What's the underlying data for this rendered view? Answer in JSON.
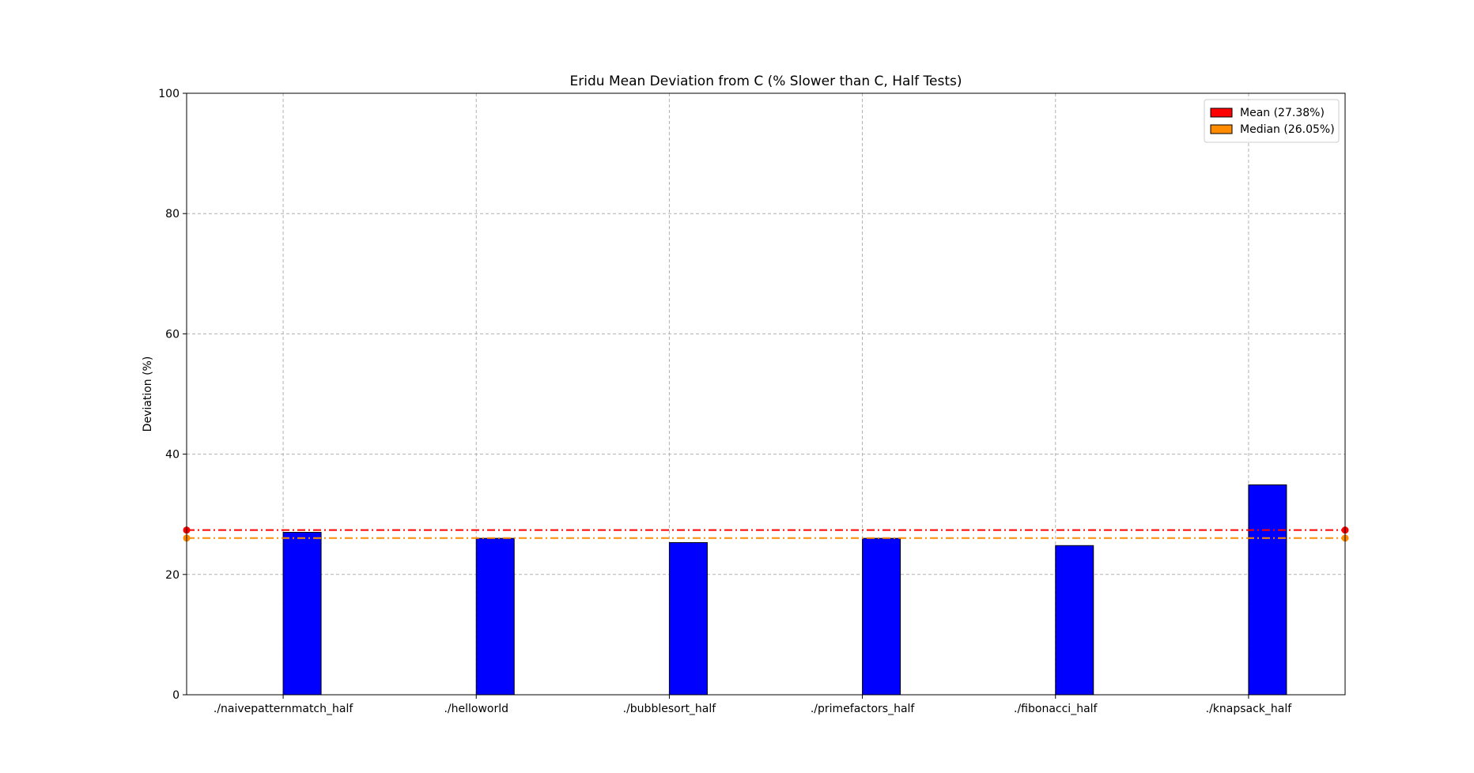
{
  "chart_data": {
    "type": "bar",
    "title": "Eridu Mean Deviation from C (% Slower than C, Half Tests)",
    "xlabel": "",
    "ylabel": "Deviation (%)",
    "categories": [
      "./naivepatternmatch_half",
      "./helloworld",
      "./bubblesort_half",
      "./primefactors_half",
      "./fibonacci_half",
      "./knapsack_half"
    ],
    "series": [
      {
        "values": [
          0,
          0,
          0,
          0,
          0,
          0
        ],
        "color": "#0000ff"
      },
      {
        "values": [
          27.0,
          26.0,
          25.3,
          26.0,
          24.8,
          34.9
        ],
        "color": "#0000ff"
      }
    ],
    "ylim": [
      0,
      100
    ],
    "yticks": [
      0,
      20,
      40,
      60,
      80,
      100
    ],
    "grid": true,
    "legend": {
      "placement": "top-right",
      "entries": [
        {
          "label": "Mean (27.38%)",
          "color": "#ff0000"
        },
        {
          "label": "Median (26.05%)",
          "color": "#ff8c00"
        }
      ]
    },
    "reference_lines": [
      {
        "name": "mean",
        "value": 27.38,
        "color": "#ff0000"
      },
      {
        "name": "median",
        "value": 26.05,
        "color": "#ff8c00"
      }
    ]
  }
}
